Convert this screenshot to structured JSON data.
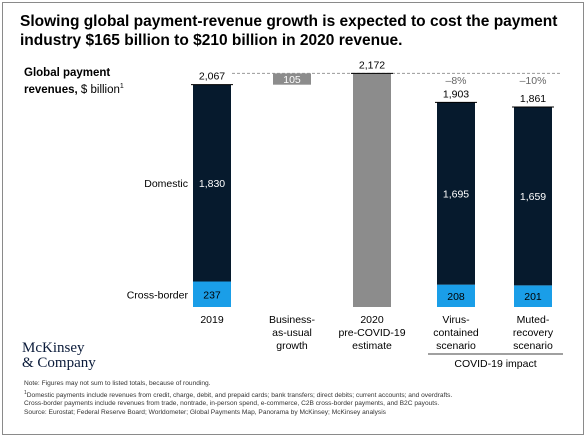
{
  "title": {
    "line1": "Slowing global payment-revenue growth is expected to cost the payment",
    "line2": "industry $165 billion to $210 billion in 2020 revenue."
  },
  "y_label": {
    "bold_line1": "Global payment",
    "bold_line2": "revenues,",
    "unit": " $ billion",
    "footnote_mark": "1"
  },
  "colors": {
    "domestic": "#061a2d",
    "cross_border": "#1a9ee8",
    "estimate": "#8c8c8c",
    "dashed": "#9a9a9a"
  },
  "chart_data": {
    "type": "bar",
    "subtype": "waterfall-stacked",
    "ylim": [
      0,
      2250
    ],
    "categories": [
      [
        "2019"
      ],
      [
        "Business-",
        "as-usual",
        "growth"
      ],
      [
        "2020",
        "pre-COVID-19",
        "estimate"
      ],
      [
        "Virus-",
        "contained",
        "scenario"
      ],
      [
        "Muted-",
        "recovery",
        "scenario"
      ]
    ],
    "series": [
      {
        "name": "Cross-border",
        "values": [
          237,
          null,
          null,
          208,
          201
        ]
      },
      {
        "name": "Domestic",
        "values": [
          1830,
          null,
          null,
          1695,
          1659
        ]
      }
    ],
    "increment": {
      "category_index": 1,
      "base": 2067,
      "value": 105,
      "label": "105"
    },
    "estimate": {
      "category_index": 2,
      "value": 2172,
      "label": "2,172"
    },
    "totals": [
      "2,067",
      null,
      "2,172",
      "1,903",
      "1,861"
    ],
    "segment_labels": {
      "cross_border": [
        "237",
        null,
        null,
        "208",
        "201"
      ],
      "domestic": [
        "1,830",
        null,
        null,
        "1,695",
        "1,659"
      ]
    },
    "changes": [
      null,
      null,
      null,
      "–8%",
      "–10%"
    ],
    "row_labels": {
      "domestic": "Domestic",
      "cross_border": "Cross-border"
    },
    "group_label": "COVID-19 impact",
    "group_range": [
      3,
      4
    ],
    "reference_line_value": 2172,
    "legend": "row labels on left"
  },
  "logo": {
    "line1": "McKinsey",
    "line2": "& Company"
  },
  "notes": {
    "line1": "Note: Figures may not sum to listed totals, because of rounding.",
    "line2_mark": "1",
    "line2": "Domestic payments include revenues from credit, charge, debit, and prepaid cards; bank transfers; direct debits; current accounts; and overdrafts.",
    "line3": "Cross-border payments include revenues from trade, nontrade, in-person spend, e-commerce, C2B cross-border payments, and B2C payouts.",
    "line4": "Source: Eurostat; Federal Reserve Board; Worldometer; Global Payments Map, Panorama by McKinsey; McKinsey analysis"
  }
}
